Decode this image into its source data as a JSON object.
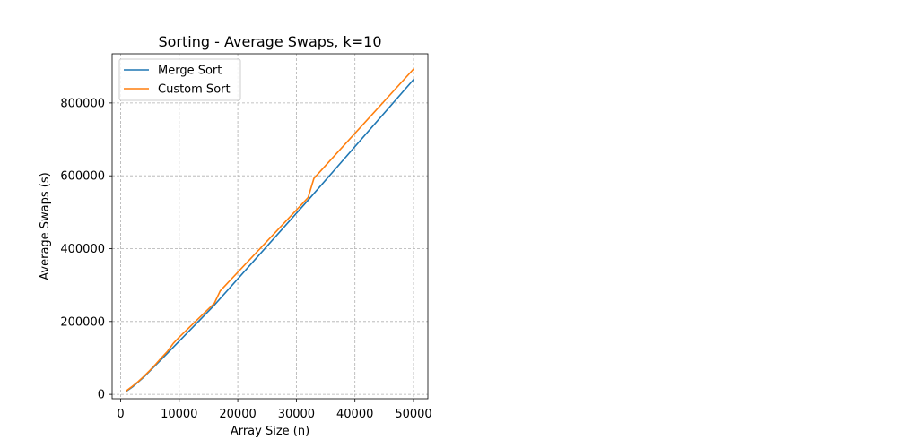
{
  "chart_data": {
    "type": "line",
    "title": "Sorting - Average Swaps, k=10",
    "xlabel": "Array Size (n)",
    "ylabel": "Average Swaps (s)",
    "xlim": [
      -1450,
      52450
    ],
    "ylim": [
      -12000,
      935000
    ],
    "xticks": [
      0,
      10000,
      20000,
      30000,
      40000,
      50000
    ],
    "yticks": [
      0,
      200000,
      400000,
      600000,
      800000
    ],
    "grid": true,
    "legend_position": "top-left",
    "series": [
      {
        "name": "Merge Sort",
        "color": "#1f77b4",
        "x": [
          1000,
          2000,
          4000,
          8000,
          16000,
          32000,
          50000
        ],
        "y": [
          9000,
          20000,
          48000,
          113000,
          245000,
          533000,
          864000
        ]
      },
      {
        "name": "Custom Sort",
        "color": "#ff7f0e",
        "x": [
          1000,
          2000,
          3000,
          4000,
          5000,
          6000,
          7000,
          8000,
          9000,
          10000,
          16000,
          17000,
          32000,
          33000,
          50000
        ],
        "y": [
          10000,
          22000,
          35000,
          50000,
          66000,
          83000,
          101000,
          118000,
          140000,
          157000,
          250000,
          284000,
          540000,
          593000,
          893000
        ]
      }
    ]
  }
}
